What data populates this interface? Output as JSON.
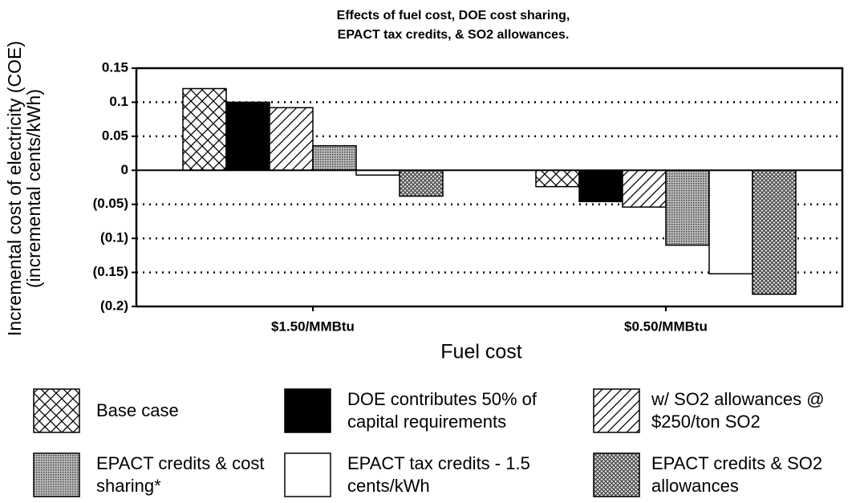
{
  "chart_data": {
    "type": "bar",
    "title": [
      "Effects of fuel cost, DOE cost sharing,",
      "EPACT tax credits, & SO2 allowances."
    ],
    "y_label": [
      "Incremental cost of electricity (COE)",
      "(incremental cents/kWh)"
    ],
    "x_label": "Fuel cost",
    "categories": [
      "$1.50/MMBtu",
      "$0.50/MMBtu"
    ],
    "series": [
      {
        "name": "Base case",
        "color": "#ffffff",
        "pattern": "crosshatch",
        "values": [
          0.12,
          -0.024
        ]
      },
      {
        "name": "DOE contributes 50% of capital requirements",
        "color": "#000000",
        "pattern": "solid",
        "values": [
          0.1,
          -0.046
        ]
      },
      {
        "name": "w/ SO2 allowances @ $250/ton SO2",
        "color": "#ffffff",
        "pattern": "diagonal",
        "values": [
          0.092,
          -0.054
        ]
      },
      {
        "name": "EPACT credits & cost sharing*",
        "color": "#999999",
        "pattern": "stipple",
        "values": [
          0.036,
          -0.11
        ]
      },
      {
        "name": "EPACT tax credits - 1.5 cents/kWh",
        "color": "#ffffff",
        "pattern": "solid",
        "values": [
          -0.007,
          -0.152
        ]
      },
      {
        "name": "EPACT credits & SO2 allowances",
        "color": "#888888",
        "pattern": "densecross",
        "values": [
          -0.038,
          -0.182
        ]
      }
    ],
    "ylim": [
      -0.2,
      0.15
    ],
    "yticks": [
      {
        "value": -0.2,
        "label": "(0.2)"
      },
      {
        "value": -0.15,
        "label": "(0.15)"
      },
      {
        "value": -0.1,
        "label": "(0.1)"
      },
      {
        "value": -0.05,
        "label": "(0.05)"
      },
      0,
      0.05,
      0.1,
      0.15
    ],
    "grid": true
  }
}
